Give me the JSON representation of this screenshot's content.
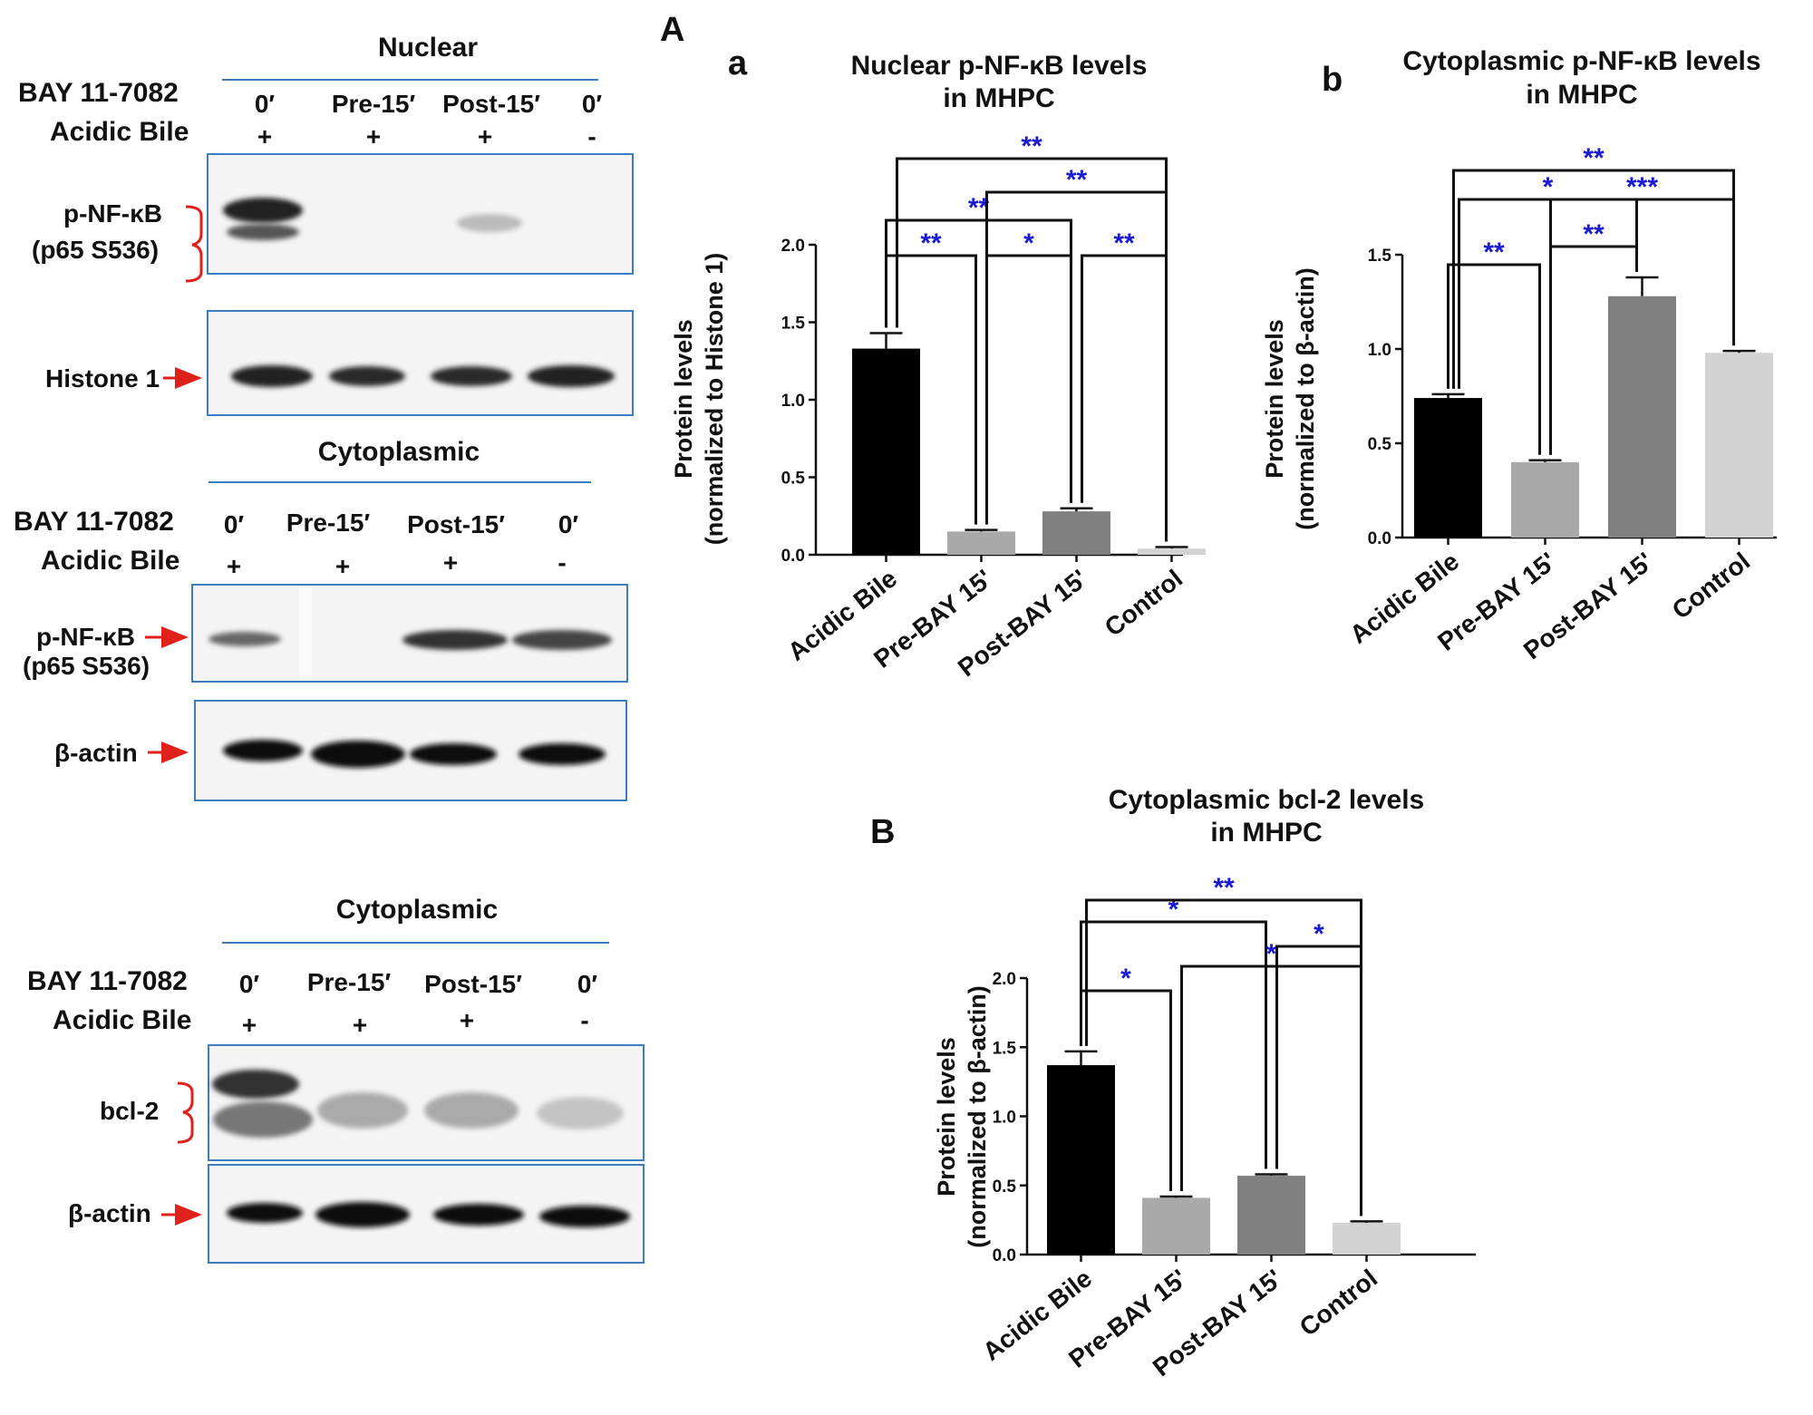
{
  "blots": {
    "nuclear": {
      "header": "Nuclear",
      "row1_label": "BAY 11-7082",
      "row1_values": [
        "0′",
        "Pre-15′",
        "Post-15′",
        "0′"
      ],
      "row2_label": "Acidic Bile",
      "row2_values": [
        "+",
        "+",
        "+",
        "-"
      ],
      "band1_label_a": "p-NF-κB",
      "band1_label_b": "(p65 S536)",
      "band2_label": "Histone 1"
    },
    "cytoplasmic": {
      "header": "Cytoplasmic",
      "row1_label": "BAY 11-7082",
      "row1_values": [
        "0′",
        "Pre-15′",
        "Post-15′",
        "0′"
      ],
      "row2_label": "Acidic Bile",
      "row2_values": [
        "+",
        "+",
        "+",
        "-"
      ],
      "band1_label_a": "p-NF-κB",
      "band1_label_b": "(p65 S536)",
      "band2_label": "β-actin"
    },
    "bcl2": {
      "header": "Cytoplasmic",
      "row1_label": "BAY 11-7082",
      "row1_values": [
        "0′",
        "Pre-15′",
        "Post-15′",
        "0′"
      ],
      "row2_label": "Acidic Bile",
      "row2_values": [
        "+",
        "+",
        "+",
        "-"
      ],
      "band1_label": "bcl-2",
      "band2_label": "β-actin"
    }
  },
  "panel_labels": {
    "A": "A",
    "a": "a",
    "b": "b",
    "B": "B"
  },
  "chart_data": [
    {
      "type": "bar",
      "title": "Nuclear p-NF-κB levels",
      "subtitle": "in MHPC",
      "ylabel": "Protein levels",
      "ylabel2": "(normalized to Histone 1)",
      "categories": [
        "Acidic Bile",
        "Pre-BAY 15'",
        "Post-BAY 15'",
        "Control"
      ],
      "values": [
        1.33,
        0.15,
        0.28,
        0.04
      ],
      "errors": [
        0.1,
        0.01,
        0.02,
        0.01
      ],
      "colors": [
        "#000000",
        "#a9a9a9",
        "#808080",
        "#d3d3d3"
      ],
      "ylim": [
        0,
        2.0
      ],
      "yticks": [
        "0.0",
        "0.5",
        "1.0",
        "1.5",
        "2.0"
      ],
      "significance": [
        {
          "from": 0,
          "to": 1,
          "label": "**"
        },
        {
          "from": 1,
          "to": 2,
          "label": "*"
        },
        {
          "from": 2,
          "to": 3,
          "label": "**"
        },
        {
          "from": 0,
          "to": 2,
          "label": "**"
        },
        {
          "from": 1,
          "to": 3,
          "label": "**"
        },
        {
          "from": 0,
          "to": 3,
          "label": "**"
        }
      ]
    },
    {
      "type": "bar",
      "title": "Cytoplasmic p-NF-κB levels",
      "subtitle": "in MHPC",
      "ylabel": "Protein levels",
      "ylabel2": "(normalized to β-actin)",
      "categories": [
        "Acidic Bile",
        "Pre-BAY 15'",
        "Post-BAY 15'",
        "Control"
      ],
      "values": [
        0.74,
        0.4,
        1.28,
        0.98
      ],
      "errors": [
        0.02,
        0.01,
        0.1,
        0.01
      ],
      "colors": [
        "#000000",
        "#a9a9a9",
        "#808080",
        "#d3d3d3"
      ],
      "ylim": [
        0,
        1.5
      ],
      "yticks": [
        "0.0",
        "0.5",
        "1.0",
        "1.5"
      ],
      "significance": [
        {
          "from": 0,
          "to": 1,
          "label": "**"
        },
        {
          "from": 1,
          "to": 2,
          "label": "**"
        },
        {
          "from": 0,
          "to": 2,
          "label": "*"
        },
        {
          "from": 1,
          "to": 3,
          "label": "***"
        },
        {
          "from": 0,
          "to": 3,
          "label": "**"
        }
      ]
    },
    {
      "type": "bar",
      "title": "Cytoplasmic bcl-2 levels",
      "subtitle": "in MHPC",
      "ylabel": "Protein levels",
      "ylabel2": "(normalized to β-actin)",
      "categories": [
        "Acidic Bile",
        "Pre-BAY 15'",
        "Post-BAY 15'",
        "Control"
      ],
      "values": [
        1.37,
        0.41,
        0.57,
        0.23
      ],
      "errors": [
        0.1,
        0.01,
        0.01,
        0.01
      ],
      "colors": [
        "#000000",
        "#a9a9a9",
        "#808080",
        "#d3d3d3"
      ],
      "ylim": [
        0,
        2.0
      ],
      "yticks": [
        "0.0",
        "0.5",
        "1.0",
        "1.5",
        "2.0"
      ],
      "significance": [
        {
          "from": 0,
          "to": 1,
          "label": "*"
        },
        {
          "from": 1,
          "to": 3,
          "label": "*"
        },
        {
          "from": 2,
          "to": 3,
          "label": "*"
        },
        {
          "from": 0,
          "to": 2,
          "label": "*"
        },
        {
          "from": 0,
          "to": 3,
          "label": "**"
        }
      ]
    }
  ]
}
